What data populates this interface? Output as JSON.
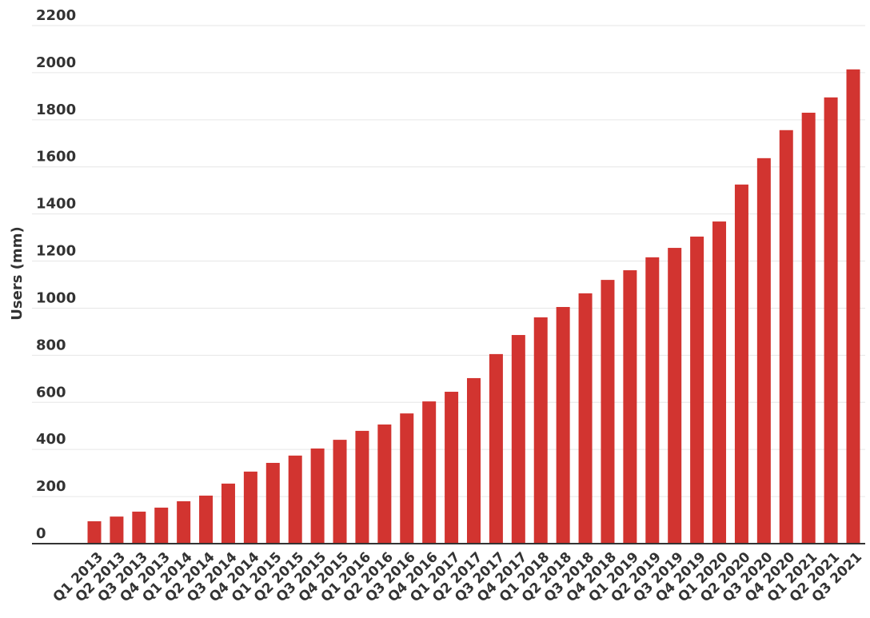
{
  "chart_data": {
    "type": "bar",
    "y_label": "Users (mm)",
    "categories": [
      "Q1 2013",
      "Q2 2013",
      "Q3 2013",
      "Q4 2013",
      "Q1 2014",
      "Q2 2014",
      "Q3 2014",
      "Q4 2014",
      "Q1 2015",
      "Q2 2015",
      "Q3 2015",
      "Q4 2015",
      "Q1 2016",
      "Q2 2016",
      "Q3 2016",
      "Q4 2016",
      "Q1 2017",
      "Q2 2017",
      "Q3 2017",
      "Q4 2017",
      "Q1 2018",
      "Q2 2018",
      "Q3 2018",
      "Q4 2018",
      "Q1 2019",
      "Q2 2019",
      "Q3 2019",
      "Q4 2019",
      "Q1 2020",
      "Q2 2020",
      "Q3 2020",
      "Q4 2020",
      "Q1 2021",
      "Q2 2021",
      "Q3 2021"
    ],
    "values": [
      95,
      115,
      136,
      153,
      180,
      204,
      255,
      306,
      343,
      374,
      404,
      441,
      479,
      506,
      553,
      604,
      645,
      703,
      805,
      886,
      961,
      1005,
      1063,
      1120,
      1161,
      1216,
      1256,
      1304,
      1368,
      1525,
      1637,
      1756,
      1830,
      1895,
      2014
    ],
    "color": "#d23430",
    "ylim": [
      0,
      2200
    ],
    "yticks": [
      0,
      200,
      400,
      600,
      800,
      1000,
      1200,
      1400,
      1600,
      1800,
      2000,
      2200
    ],
    "grid": true
  }
}
